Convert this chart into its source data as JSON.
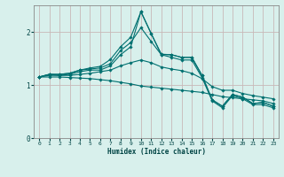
{
  "xlabel": "Humidex (Indice chaleur)",
  "background_color": "#d8f0ec",
  "grid_color": "#c8b8b8",
  "line_color": "#007070",
  "xlim": [
    -0.5,
    23.5
  ],
  "ylim": [
    0,
    2.5
  ],
  "xticks": [
    0,
    1,
    2,
    3,
    4,
    5,
    6,
    7,
    8,
    9,
    10,
    11,
    12,
    13,
    14,
    15,
    16,
    17,
    18,
    19,
    20,
    21,
    22,
    23
  ],
  "yticks": [
    0,
    1,
    2
  ],
  "lines": [
    [
      1.15,
      1.2,
      1.2,
      1.22,
      1.28,
      1.32,
      1.35,
      1.48,
      1.72,
      1.9,
      2.38,
      1.97,
      1.58,
      1.57,
      1.52,
      1.52,
      1.18,
      0.72,
      0.6,
      0.82,
      0.77,
      0.65,
      0.67,
      0.6
    ],
    [
      1.15,
      1.2,
      1.2,
      1.22,
      1.28,
      1.3,
      1.32,
      1.4,
      1.65,
      1.8,
      2.08,
      1.82,
      1.57,
      1.57,
      1.52,
      1.52,
      1.18,
      0.72,
      0.6,
      0.82,
      0.77,
      0.65,
      0.67,
      0.6
    ],
    [
      1.15,
      1.2,
      1.18,
      1.2,
      1.25,
      1.28,
      1.28,
      1.36,
      1.57,
      1.72,
      2.38,
      1.97,
      1.57,
      1.52,
      1.47,
      1.47,
      1.14,
      0.7,
      0.57,
      0.8,
      0.74,
      0.63,
      0.63,
      0.57
    ],
    [
      1.15,
      1.18,
      1.18,
      1.18,
      1.2,
      1.22,
      1.25,
      1.28,
      1.36,
      1.42,
      1.47,
      1.42,
      1.34,
      1.3,
      1.27,
      1.22,
      1.12,
      0.97,
      0.9,
      0.9,
      0.84,
      0.8,
      0.77,
      0.74
    ],
    [
      1.15,
      1.15,
      1.15,
      1.14,
      1.13,
      1.12,
      1.1,
      1.08,
      1.05,
      1.02,
      0.98,
      0.96,
      0.94,
      0.92,
      0.9,
      0.88,
      0.86,
      0.82,
      0.78,
      0.76,
      0.74,
      0.72,
      0.7,
      0.65
    ]
  ]
}
